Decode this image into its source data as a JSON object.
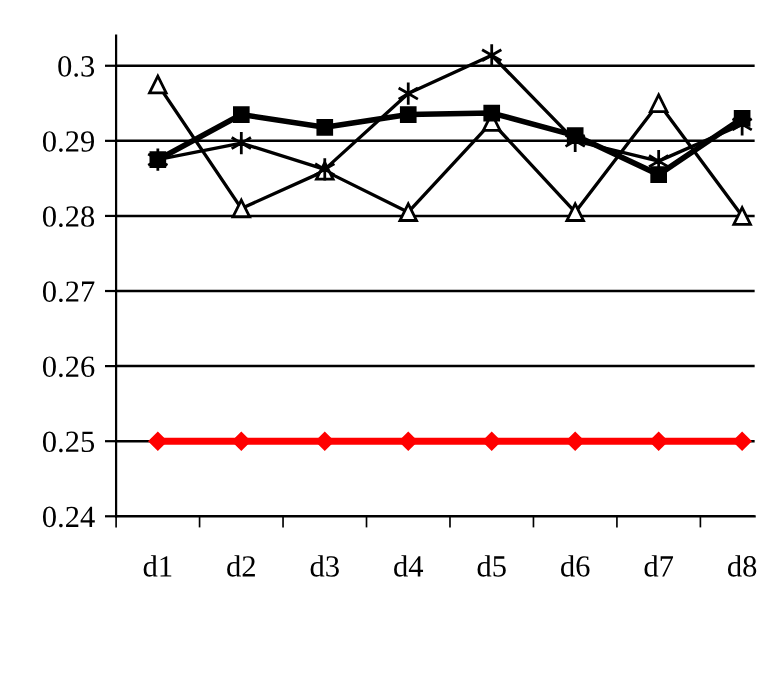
{
  "chart_data": {
    "type": "line",
    "categories": [
      "d1",
      "d2",
      "d3",
      "d4",
      "d5",
      "d6",
      "d7",
      "d8"
    ],
    "series": [
      {
        "color": "#000000",
        "marker": "triangle",
        "values": [
          0.2975,
          0.281,
          0.286,
          0.2805,
          0.2925,
          0.2805,
          0.295,
          0.28
        ]
      },
      {
        "color": "#000000",
        "marker": "square",
        "values": [
          0.2875,
          0.2935,
          0.2918,
          0.2935,
          0.2937,
          0.2907,
          0.2855,
          0.293
        ]
      },
      {
        "color": "#000000",
        "marker": "cross",
        "values": [
          0.2875,
          0.2897,
          0.2862,
          0.2963,
          0.3014,
          0.29,
          0.2873,
          0.2922
        ]
      },
      {
        "color": "#ff0000",
        "marker": "diamond",
        "values": [
          0.25,
          0.25,
          0.25,
          0.25,
          0.25,
          0.25,
          0.25,
          0.25
        ]
      }
    ],
    "ylim": [
      0.24,
      0.304
    ],
    "yticks": [
      0.24,
      0.25,
      0.26,
      0.27,
      0.28,
      0.29,
      0.3
    ],
    "grid": "y",
    "legend": false,
    "line_style": "solid"
  }
}
